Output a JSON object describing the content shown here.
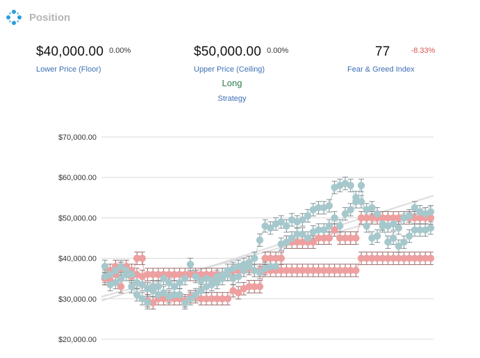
{
  "header": {
    "title": "Position",
    "icon": "dots-ring-icon"
  },
  "stats": {
    "floor": {
      "value": "$40,000.00",
      "delta": "0.00%",
      "label": "Lower Price (Floor)"
    },
    "ceiling": {
      "value": "$50,000.00",
      "delta": "0.00%",
      "label": "Upper Price (Ceiling)"
    },
    "fear_greed": {
      "value": "77",
      "delta": "-8.33%",
      "label": "Fear & Greed Index"
    },
    "strategy": {
      "value": "Long",
      "label": "Strategy"
    }
  },
  "colors": {
    "accent": "#3c6fb5",
    "negative": "#d9534f",
    "positive": "#2c7d4b",
    "pink": "#ee9f9f",
    "teal": "#a6c8cc"
  },
  "chart_data": {
    "type": "scatter",
    "ylim": [
      19000,
      73000
    ],
    "yticks": [
      20000,
      30000,
      40000,
      50000,
      60000,
      70000
    ],
    "ytick_labels": [
      "$20,000.00",
      "$30,000.00",
      "$40,000.00",
      "$50,000.00",
      "$60,000.00",
      "$70,000.00"
    ],
    "grid": true,
    "error_bars": true,
    "series": [
      {
        "color": "#ee9f9f",
        "values": [
          35000,
          34500,
          36000,
          33000,
          37000,
          35500,
          40000,
          40000,
          29500,
          29000,
          30000,
          30000,
          30000,
          30000,
          30000,
          29500,
          30500,
          30500,
          30000,
          30000,
          30000,
          30000,
          30000,
          30000,
          32000,
          31500,
          32500,
          33000,
          33000,
          33000,
          37000,
          37000,
          37000,
          37000,
          37000,
          37000,
          37000,
          37000,
          37000,
          37000,
          37000,
          37000,
          37000,
          37000,
          37000,
          37000,
          37000,
          37000,
          40000,
          40000,
          40000,
          40000,
          40000,
          40000,
          40000,
          40000,
          40000,
          40000,
          40000,
          40000,
          40000,
          40000
        ]
      },
      {
        "color": "#ee9f9f",
        "values": [
          35000,
          37000,
          38000,
          37500,
          38000,
          37000,
          36000,
          35500,
          36000,
          36000,
          36000,
          36000,
          36000,
          36000,
          36000,
          36000,
          36000,
          36000,
          36000,
          36000,
          36000,
          36000,
          36000,
          36000,
          37000,
          37000,
          37000,
          37500,
          37000,
          37000,
          40000,
          40000,
          40000,
          40000,
          44000,
          44000,
          44000,
          44000,
          44000,
          44000,
          45000,
          45000,
          45000,
          47000,
          45000,
          45000,
          45000,
          45000,
          50000,
          50000,
          50000,
          50000,
          50000,
          50000,
          50000,
          50000,
          50000,
          50000,
          50000,
          50000,
          50000,
          50000
        ]
      },
      {
        "color": "#a6c8cc",
        "values": [
          38000,
          33500,
          34000,
          35000,
          36000,
          33000,
          31000,
          30000,
          29000,
          32000,
          31000,
          31500,
          30500,
          31000,
          31000,
          29000,
          30000,
          31000,
          32000,
          33000,
          33500,
          34000,
          35000,
          36000,
          35000,
          35500,
          37000,
          38000,
          37000,
          36500,
          37500,
          38000,
          38000,
          43500,
          44000,
          45000,
          46000,
          46000,
          45000,
          46500,
          47000,
          47000,
          48000,
          50000,
          48000,
          51000,
          52000,
          54000,
          58000,
          48000,
          45000,
          45500,
          48000,
          44000,
          45000,
          43000,
          44000,
          45500,
          47000,
          47000,
          47000,
          47500
        ]
      },
      {
        "color": "#a6c8cc",
        "values": [
          35500,
          36000,
          37000,
          38000,
          37000,
          36000,
          34000,
          33500,
          32500,
          33000,
          33000,
          35000,
          34000,
          33000,
          34000,
          35000,
          38500,
          35500,
          34500,
          35000,
          34500,
          35500,
          36000,
          37000,
          37500,
          38000,
          38500,
          39000,
          40000,
          44500,
          48000,
          47500,
          48500,
          49000,
          48000,
          49500,
          49000,
          49500,
          50500,
          52000,
          52500,
          52500,
          53000,
          57500,
          58000,
          58500,
          58000,
          55000,
          54000,
          52000,
          52500,
          51000,
          48500,
          48000,
          48500,
          47500,
          50000,
          50500,
          52500,
          51500,
          51000,
          51500
        ]
      }
    ],
    "trend_lines": [
      {
        "from": 29500,
        "to": 55500
      },
      {
        "from": 30500,
        "to": 53000
      }
    ]
  }
}
